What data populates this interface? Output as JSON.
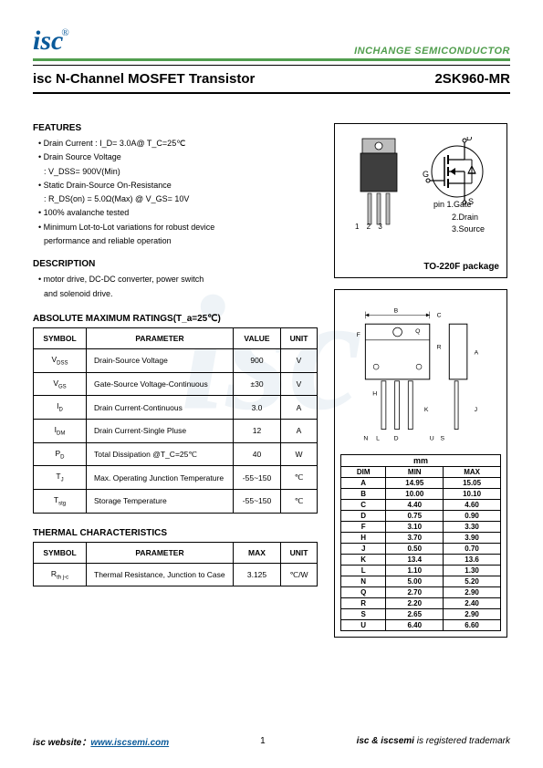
{
  "header": {
    "logo_text": "isc",
    "logo_reg": "®",
    "company": "INCHANGE SEMICONDUCTOR"
  },
  "title": {
    "left": "isc N-Channel MOSFET Transistor",
    "right": "2SK960-MR"
  },
  "features": {
    "heading": "FEATURES",
    "items": [
      "Drain Current : I_D= 3.0A@ T_C=25℃",
      "Drain Source Voltage",
      ": V_DSS= 900V(Min)",
      "Static Drain-Source On-Resistance",
      ": R_DS(on) = 5.0Ω(Max) @ V_GS= 10V",
      "100% avalanche tested",
      "Minimum Lot-to-Lot variations for robust device",
      "performance and reliable operation"
    ]
  },
  "description": {
    "heading": "DESCRIPTION",
    "items": [
      "motor drive, DC-DC converter, power switch",
      "and solenoid drive."
    ]
  },
  "ratings": {
    "heading": "ABSOLUTE MAXIMUM RATINGS(T_a=25℃)",
    "cols": [
      "SYMBOL",
      "PARAMETER",
      "VALUE",
      "UNIT"
    ],
    "rows": [
      {
        "sym": "V_DSS",
        "param": "Drain-Source Voltage",
        "val": "900",
        "unit": "V"
      },
      {
        "sym": "V_GS",
        "param": "Gate-Source Voltage-Continuous",
        "val": "±30",
        "unit": "V"
      },
      {
        "sym": "I_D",
        "param": "Drain Current-Continuous",
        "val": "3.0",
        "unit": "A"
      },
      {
        "sym": "I_DM",
        "param": "Drain Current-Single Pluse",
        "val": "12",
        "unit": "A"
      },
      {
        "sym": "P_D",
        "param": "Total Dissipation @T_C=25℃",
        "val": "40",
        "unit": "W"
      },
      {
        "sym": "T_J",
        "param": "Max. Operating Junction Temperature",
        "val": "-55~150",
        "unit": "℃"
      },
      {
        "sym": "T_stg",
        "param": "Storage Temperature",
        "val": "-55~150",
        "unit": "℃"
      }
    ]
  },
  "thermal": {
    "heading": "THERMAL CHARACTERISTICS",
    "cols": [
      "SYMBOL",
      "PARAMETER",
      "MAX",
      "UNIT"
    ],
    "rows": [
      {
        "sym": "R_th j-c",
        "param": "Thermal Resistance, Junction to Case",
        "val": "3.125",
        "unit": "℃/W"
      }
    ]
  },
  "package": {
    "pin_label_head": "pin 1.Gate",
    "pin2": "2.Drain",
    "pin3": "3.Source",
    "pin_nums": "1 2 3",
    "label": "TO-220F package",
    "symbol_labels": {
      "d": "D",
      "g": "G",
      "s": "S"
    }
  },
  "dims": {
    "mm_label": "mm",
    "cols": [
      "DIM",
      "MIN",
      "MAX"
    ],
    "rows": [
      [
        "A",
        "14.95",
        "15.05"
      ],
      [
        "B",
        "10.00",
        "10.10"
      ],
      [
        "C",
        "4.40",
        "4.60"
      ],
      [
        "D",
        "0.75",
        "0.90"
      ],
      [
        "F",
        "3.10",
        "3.30"
      ],
      [
        "H",
        "3.70",
        "3.90"
      ],
      [
        "J",
        "0.50",
        "0.70"
      ],
      [
        "K",
        "13.4",
        "13.6"
      ],
      [
        "L",
        "1.10",
        "1.30"
      ],
      [
        "N",
        "5.00",
        "5.20"
      ],
      [
        "Q",
        "2.70",
        "2.90"
      ],
      [
        "R",
        "2.20",
        "2.40"
      ],
      [
        "S",
        "2.65",
        "2.90"
      ],
      [
        "U",
        "6.40",
        "6.60"
      ]
    ],
    "drawing_labels": [
      "B",
      "C",
      "Q",
      "F",
      "A",
      "R",
      "H",
      "K",
      "D",
      "L",
      "N",
      "S",
      "U",
      "J"
    ]
  },
  "footer": {
    "web_label": "isc website：",
    "web_url": "www.iscsemi.com",
    "page": "1",
    "trade_pre": "isc & iscsemi",
    "trade_post": " is registered trademark"
  },
  "colors": {
    "green": "#519e4e",
    "blue": "#0a5a9a",
    "text": "#000000",
    "bg": "#ffffff",
    "watermark": "#eef3f7",
    "device_body": "#3e3e3e",
    "device_tab": "#bcbcbc"
  },
  "watermark_text": "isc"
}
